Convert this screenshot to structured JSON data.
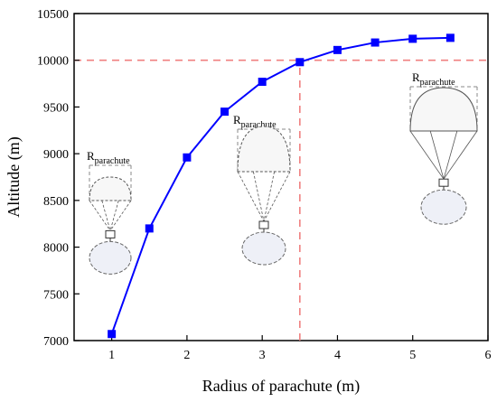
{
  "chart_data": {
    "type": "line",
    "xlabel": "Radius of parachute (m)",
    "ylabel": "Altitude (m)",
    "xlim": [
      0.5,
      6
    ],
    "ylim": [
      7000,
      10500
    ],
    "x_ticks": [
      1,
      2,
      3,
      4,
      5,
      6
    ],
    "y_ticks": [
      7000,
      7500,
      8000,
      8500,
      9000,
      9500,
      10000,
      10500
    ],
    "grid": false,
    "series": [
      {
        "x": [
          1.0,
          1.5,
          2.0,
          2.5,
          3.0,
          3.5,
          4.0,
          4.5,
          5.0,
          5.5
        ],
        "values": [
          7070,
          8200,
          8960,
          9450,
          9770,
          9980,
          10110,
          10190,
          10230,
          10240
        ],
        "color": "#0000ff",
        "marker": "square"
      }
    ],
    "reference_lines": [
      {
        "orientation": "horizontal",
        "value": 10000,
        "color": "#f08080",
        "style": "dashed"
      },
      {
        "orientation": "vertical",
        "value": 3.5,
        "color": "#f08080",
        "style": "dashed"
      }
    ],
    "annotations": [
      {
        "label_main": "R",
        "label_sub": "parachute",
        "parachute_size": "small"
      },
      {
        "label_main": "R",
        "label_sub": "parachute",
        "parachute_size": "medium"
      },
      {
        "label_main": "R",
        "label_sub": "parachute",
        "parachute_size": "large"
      }
    ]
  }
}
